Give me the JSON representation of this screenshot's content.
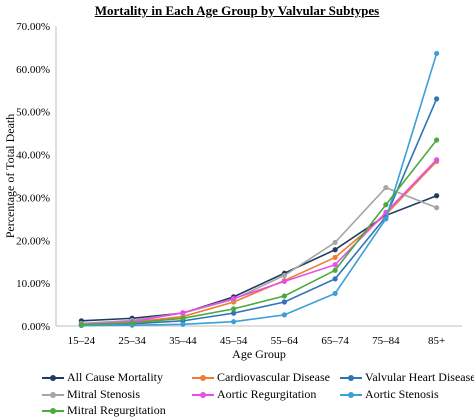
{
  "chart_data": {
    "type": "line",
    "title": "Mortality in Each Age Group by Valvular Subtypes",
    "xlabel": "Age Group",
    "ylabel": "Percentage of Total Death",
    "categories": [
      "15–24",
      "25–34",
      "35–44",
      "45–54",
      "55–64",
      "65–74",
      "75–84",
      "85+"
    ],
    "ylim": [
      0,
      70
    ],
    "yticks": [
      "0.00%",
      "10.00%",
      "20.00%",
      "30.00%",
      "40.00%",
      "50.00%",
      "60.00%",
      "70.00%"
    ],
    "grid": false,
    "legend_position": "bottom",
    "series": [
      {
        "name": "All Cause Mortality",
        "color": "#1f3b64",
        "values": [
          1.2,
          1.8,
          3.0,
          6.8,
          12.3,
          17.8,
          25.8,
          30.4
        ]
      },
      {
        "name": "Cardiovascular Disease",
        "color": "#ed7d31",
        "values": [
          0.4,
          0.9,
          2.2,
          5.6,
          10.6,
          16.0,
          26.0,
          38.4
        ]
      },
      {
        "name": "Valvular Heart Diseases",
        "color": "#2e75b6",
        "values": [
          0.2,
          0.5,
          1.2,
          3.0,
          5.6,
          11.0,
          25.5,
          53.0
        ]
      },
      {
        "name": "Mitral Stenosis",
        "color": "#a5a5a5",
        "values": [
          0.6,
          1.3,
          3.0,
          6.2,
          11.8,
          19.5,
          32.3,
          27.6
        ]
      },
      {
        "name": "Aortic Regurgitation",
        "color": "#e84fe8",
        "values": [
          0.4,
          1.0,
          3.1,
          6.4,
          10.4,
          14.3,
          26.5,
          38.8
        ]
      },
      {
        "name": "Aortic Stenosis",
        "color": "#3b9fd9",
        "values": [
          0.1,
          0.2,
          0.4,
          1.0,
          2.6,
          7.6,
          25.0,
          63.6
        ]
      },
      {
        "name": "Mitral Regurgitation",
        "color": "#4aaa3c",
        "values": [
          0.3,
          0.7,
          1.8,
          4.0,
          7.0,
          13.0,
          28.3,
          43.4
        ]
      }
    ]
  }
}
